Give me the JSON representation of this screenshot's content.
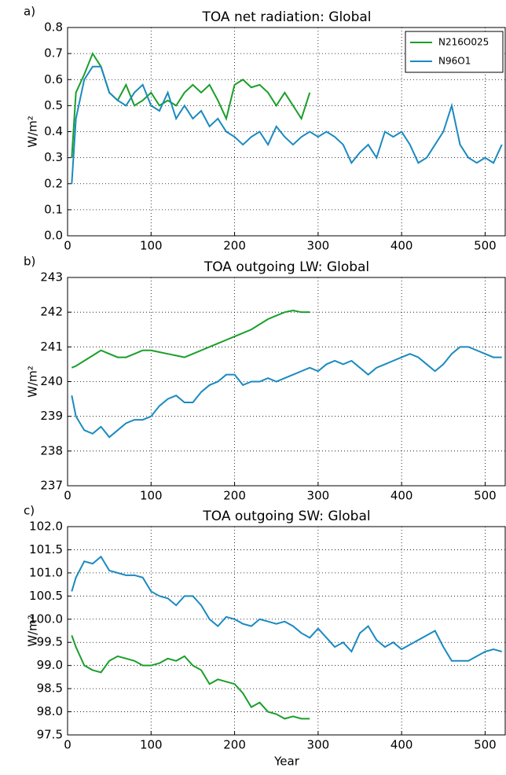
{
  "chart_data": [
    {
      "type": "line",
      "panel_label": "a)",
      "title": "TOA net radiation: Global",
      "ylabel": "W/m²",
      "x": [
        5,
        10,
        20,
        30,
        40,
        50,
        60,
        70,
        80,
        90,
        100,
        110,
        120,
        130,
        140,
        150,
        160,
        170,
        180,
        190,
        200,
        210,
        220,
        230,
        240,
        250,
        260,
        270,
        280,
        290,
        300,
        310,
        320,
        330,
        340,
        350,
        360,
        370,
        380,
        390,
        400,
        410,
        420,
        430,
        440,
        450,
        460,
        470,
        480,
        490,
        500,
        510,
        520
      ],
      "xlim": [
        0,
        525
      ],
      "xticks": [
        0,
        100,
        200,
        300,
        400,
        500
      ],
      "ylim": [
        0,
        0.8
      ],
      "yticks": [
        {
          "value": 0,
          "label": "0.0"
        },
        0.1,
        0.2,
        0.3,
        0.4,
        0.5,
        0.6,
        0.7,
        0.8
      ],
      "grid": true,
      "legend": "upper right",
      "series": [
        {
          "name": "N216O025",
          "color": "#1a9f2a",
          "values": [
            0.3,
            0.55,
            0.62,
            0.7,
            0.65,
            0.55,
            0.52,
            0.58,
            0.5,
            0.52,
            0.55,
            0.5,
            0.52,
            0.5,
            0.55,
            0.58,
            0.55,
            0.58,
            0.52,
            0.45,
            0.58,
            0.6,
            0.57,
            0.58,
            0.55,
            0.5,
            0.55,
            0.5,
            0.45,
            0.55,
            null,
            null,
            null,
            null,
            null,
            null,
            null,
            null,
            null,
            null,
            null,
            null,
            null,
            null,
            null,
            null,
            null,
            null,
            null,
            null,
            null,
            null,
            null
          ]
        },
        {
          "name": "N96O1",
          "color": "#1a8ac0",
          "values": [
            0.2,
            0.45,
            0.6,
            0.65,
            0.65,
            0.55,
            0.52,
            0.5,
            0.55,
            0.58,
            0.5,
            0.48,
            0.55,
            0.45,
            0.5,
            0.45,
            0.48,
            0.42,
            0.45,
            0.4,
            0.38,
            0.35,
            0.38,
            0.4,
            0.35,
            0.42,
            0.38,
            0.35,
            0.38,
            0.4,
            0.38,
            0.4,
            0.38,
            0.35,
            0.28,
            0.32,
            0.35,
            0.3,
            0.4,
            0.38,
            0.4,
            0.35,
            0.28,
            0.3,
            0.35,
            0.4,
            0.5,
            0.35,
            0.3,
            0.28,
            0.3,
            0.28,
            0.35
          ]
        }
      ]
    },
    {
      "type": "line",
      "panel_label": "b)",
      "title": "TOA outgoing LW: Global",
      "ylabel": "W/m²",
      "x": [
        5,
        10,
        20,
        30,
        40,
        50,
        60,
        70,
        80,
        90,
        100,
        110,
        120,
        130,
        140,
        150,
        160,
        170,
        180,
        190,
        200,
        210,
        220,
        230,
        240,
        250,
        260,
        270,
        280,
        290,
        300,
        310,
        320,
        330,
        340,
        350,
        360,
        370,
        380,
        390,
        400,
        410,
        420,
        430,
        440,
        450,
        460,
        470,
        480,
        490,
        500,
        510,
        520
      ],
      "xlim": [
        0,
        525
      ],
      "xticks": [
        0,
        100,
        200,
        300,
        400,
        500
      ],
      "ylim": [
        237,
        243
      ],
      "yticks": [
        237,
        238,
        239,
        240,
        241,
        242,
        243
      ],
      "grid": true,
      "series": [
        {
          "color": "#1a9f2a",
          "values": [
            240.4,
            240.45,
            240.6,
            240.75,
            240.9,
            240.8,
            240.7,
            240.7,
            240.8,
            240.9,
            240.9,
            240.85,
            240.8,
            240.75,
            240.7,
            240.8,
            240.9,
            241.0,
            241.1,
            241.2,
            241.3,
            241.4,
            241.5,
            241.65,
            241.8,
            241.9,
            242.0,
            242.05,
            242.0,
            242.0,
            null,
            null,
            null,
            null,
            null,
            null,
            null,
            null,
            null,
            null,
            null,
            null,
            null,
            null,
            null,
            null,
            null,
            null,
            null,
            null,
            null,
            null,
            null
          ]
        },
        {
          "color": "#1a8ac0",
          "values": [
            239.6,
            239.0,
            238.6,
            238.5,
            238.7,
            238.4,
            238.6,
            238.8,
            238.9,
            238.9,
            239.0,
            239.3,
            239.5,
            239.6,
            239.4,
            239.4,
            239.7,
            239.9,
            240.0,
            240.2,
            240.2,
            239.9,
            240.0,
            240.0,
            240.1,
            240.0,
            240.1,
            240.2,
            240.3,
            240.4,
            240.3,
            240.5,
            240.6,
            240.5,
            240.6,
            240.4,
            240.2,
            240.4,
            240.5,
            240.6,
            240.7,
            240.8,
            240.7,
            240.5,
            240.3,
            240.5,
            240.8,
            241.0,
            241.0,
            240.9,
            240.8,
            240.7,
            240.7
          ]
        }
      ]
    },
    {
      "type": "line",
      "panel_label": "c)",
      "title": "TOA outgoing SW: Global",
      "ylabel": "W/m²",
      "xlabel": "Year",
      "x": [
        5,
        10,
        20,
        30,
        40,
        50,
        60,
        70,
        80,
        90,
        100,
        110,
        120,
        130,
        140,
        150,
        160,
        170,
        180,
        190,
        200,
        210,
        220,
        230,
        240,
        250,
        260,
        270,
        280,
        290,
        300,
        310,
        320,
        330,
        340,
        350,
        360,
        370,
        380,
        390,
        400,
        410,
        420,
        430,
        440,
        450,
        460,
        470,
        480,
        490,
        500,
        510,
        520
      ],
      "xlim": [
        0,
        525
      ],
      "xticks": [
        0,
        100,
        200,
        300,
        400,
        500
      ],
      "ylim": [
        97.5,
        102
      ],
      "yticks": [
        97.5,
        {
          "value": 98,
          "label": "98.0"
        },
        98.5,
        {
          "value": 99,
          "label": "99.0"
        },
        99.5,
        {
          "value": 100,
          "label": "100.0"
        },
        100.5,
        {
          "value": 101,
          "label": "101.0"
        },
        101.5,
        {
          "value": 102,
          "label": "102.0"
        }
      ],
      "grid": true,
      "series": [
        {
          "color": "#1a9f2a",
          "values": [
            99.65,
            99.4,
            99.0,
            98.9,
            98.85,
            99.1,
            99.2,
            99.15,
            99.1,
            99.0,
            99.0,
            99.05,
            99.15,
            99.1,
            99.2,
            99.0,
            98.9,
            98.6,
            98.7,
            98.65,
            98.6,
            98.4,
            98.1,
            98.2,
            98.0,
            97.95,
            97.85,
            97.9,
            97.85,
            97.85,
            null,
            null,
            null,
            null,
            null,
            null,
            null,
            null,
            null,
            null,
            null,
            null,
            null,
            null,
            null,
            null,
            null,
            null,
            null,
            null,
            null,
            null,
            null
          ]
        },
        {
          "color": "#1a8ac0",
          "values": [
            100.6,
            100.9,
            101.25,
            101.2,
            101.35,
            101.05,
            101.0,
            100.95,
            100.95,
            100.9,
            100.6,
            100.5,
            100.45,
            100.3,
            100.5,
            100.5,
            100.3,
            100.0,
            99.85,
            100.05,
            100.0,
            99.9,
            99.85,
            100.0,
            99.95,
            99.9,
            99.95,
            99.85,
            99.7,
            99.6,
            99.8,
            99.6,
            99.4,
            99.5,
            99.3,
            99.7,
            99.85,
            99.55,
            99.4,
            99.5,
            99.35,
            99.45,
            99.55,
            99.65,
            99.75,
            99.4,
            99.1,
            99.1,
            99.1,
            99.2,
            99.3,
            99.35,
            99.3
          ]
        }
      ]
    }
  ]
}
